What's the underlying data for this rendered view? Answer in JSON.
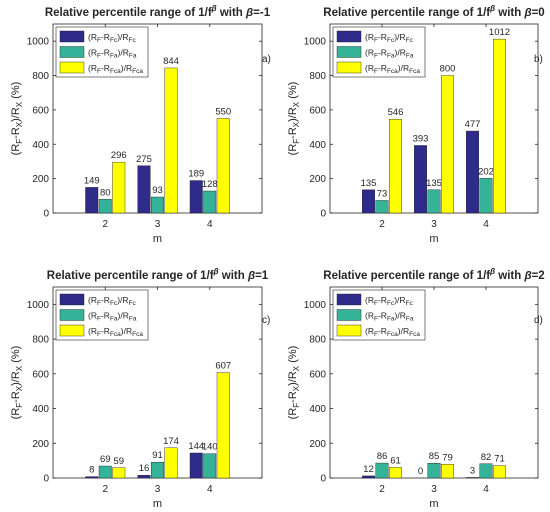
{
  "colors": {
    "series": [
      "#2e2b8a",
      "#35b398",
      "#ffff00"
    ],
    "axis": "#262626",
    "legend_border": "#262626"
  },
  "chart_data": [
    {
      "type": "bar",
      "title": "Relative percentile range of 1/f^β with β=-1",
      "title_parts": {
        "prefix": "Relative percentile range of 1/f",
        "sup": "β",
        "mid": " with ",
        "beta": "β",
        "suffix": "=-1"
      },
      "panel_tag": "a)",
      "xlabel": "m",
      "ylabel": {
        "base1": "(R",
        "sub1": "F",
        "mid": "-R",
        "sub2": "X",
        "tail": ")/R",
        "sub3": "X",
        "unit": " (%)"
      },
      "categories": [
        "2",
        "3",
        "4"
      ],
      "ylim": [
        0,
        1100
      ],
      "yticks": [
        0,
        200,
        400,
        600,
        800,
        1000
      ],
      "legend": "top-left",
      "series": [
        {
          "name": "(RF-RFc)/RFc",
          "values": [
            149,
            275,
            189
          ]
        },
        {
          "name": "(RF-RFa)/RFa",
          "values": [
            80,
            93,
            128
          ]
        },
        {
          "name": "(RF-RFca)/RFca",
          "values": [
            296,
            844,
            550
          ]
        }
      ]
    },
    {
      "type": "bar",
      "title": "Relative percentile range of 1/f^β with β=0",
      "title_parts": {
        "prefix": "Relative percentile range of 1/f",
        "sup": "β",
        "mid": " with ",
        "beta": "β",
        "suffix": "=0"
      },
      "panel_tag": "b)",
      "xlabel": "m",
      "ylabel": {
        "base1": "(R",
        "sub1": "F",
        "mid": "-R",
        "sub2": "X",
        "tail": ")/R",
        "sub3": "X",
        "unit": " (%)"
      },
      "categories": [
        "2",
        "3",
        "4"
      ],
      "ylim": [
        0,
        1100
      ],
      "yticks": [
        0,
        200,
        400,
        600,
        800,
        1000
      ],
      "legend": "top-left",
      "series": [
        {
          "name": "(RF-RFc)/RFc",
          "values": [
            135,
            393,
            477
          ]
        },
        {
          "name": "(RF-RFa)/RFa",
          "values": [
            73,
            135,
            202
          ]
        },
        {
          "name": "(RF-RFca)/RFca",
          "values": [
            546,
            800,
            1012
          ]
        }
      ]
    },
    {
      "type": "bar",
      "title": "Relative percentile range of 1/f^β with β=1",
      "title_parts": {
        "prefix": "Relative percentile range of 1/f",
        "sup": "β",
        "mid": " with ",
        "beta": "β",
        "suffix": "=1"
      },
      "panel_tag": "c)",
      "xlabel": "m",
      "ylabel": {
        "base1": "(R",
        "sub1": "F",
        "mid": "-R",
        "sub2": "X",
        "tail": ")/R",
        "sub3": "X",
        "unit": " (%)"
      },
      "categories": [
        "2",
        "3",
        "4"
      ],
      "ylim": [
        0,
        1100
      ],
      "yticks": [
        0,
        200,
        400,
        600,
        800,
        1000
      ],
      "legend": "top-left",
      "series": [
        {
          "name": "(RF-RFc)/RFc",
          "values": [
            8,
            16,
            144
          ]
        },
        {
          "name": "(RF-RFa)/RFa",
          "values": [
            69,
            91,
            140
          ]
        },
        {
          "name": "(RF-RFca)/RFca",
          "values": [
            59,
            174,
            607
          ]
        }
      ]
    },
    {
      "type": "bar",
      "title": "Relative percentile range of 1/f^β with β=2",
      "title_parts": {
        "prefix": "Relative percentile range of 1/f",
        "sup": "β",
        "mid": " with ",
        "beta": "β",
        "suffix": "=2"
      },
      "panel_tag": "d)",
      "xlabel": "m",
      "ylabel": {
        "base1": "(R",
        "sub1": "F",
        "mid": "-R",
        "sub2": "X",
        "tail": ")/R",
        "sub3": "X",
        "unit": " (%)"
      },
      "categories": [
        "2",
        "3",
        "4"
      ],
      "ylim": [
        0,
        1100
      ],
      "yticks": [
        0,
        200,
        400,
        600,
        800,
        1000
      ],
      "legend": "top-left",
      "series": [
        {
          "name": "(RF-RFc)/RFc",
          "values": [
            12,
            0,
            3
          ]
        },
        {
          "name": "(RF-RFa)/RFa",
          "values": [
            86,
            85,
            82
          ]
        },
        {
          "name": "(RF-RFca)/RFca",
          "values": [
            61,
            79,
            71
          ]
        }
      ]
    }
  ],
  "legend_entries": [
    {
      "pre": "(R",
      "s1": "F",
      "mid": "-R",
      "s2": "Fc",
      "post": ")/R",
      "s3": "Fc"
    },
    {
      "pre": "(R",
      "s1": "F",
      "mid": "-R",
      "s2": "Fa",
      "post": ")/R",
      "s3": "Fa"
    },
    {
      "pre": "(R",
      "s1": "F",
      "mid": "-R",
      "s2": "Fca",
      "post": ")/R",
      "s3": "Fca"
    }
  ]
}
